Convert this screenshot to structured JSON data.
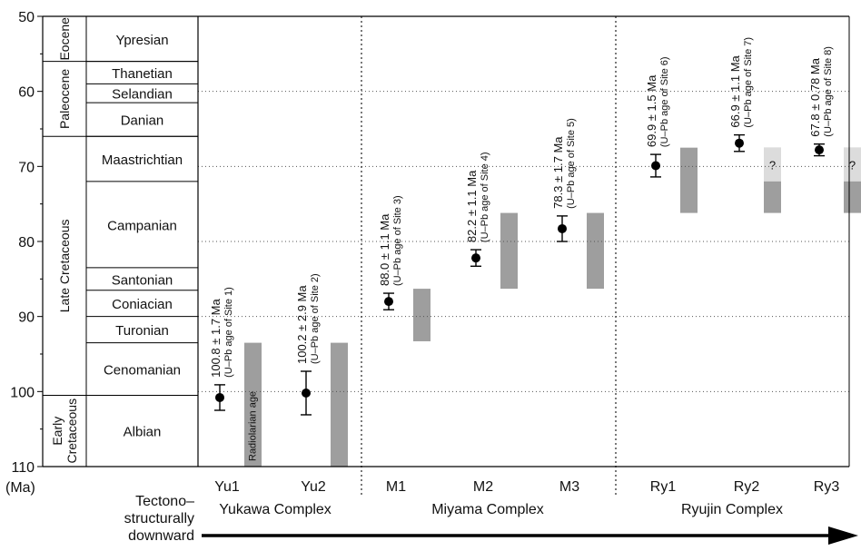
{
  "chart_data": {
    "type": "scatter",
    "ylabel": "(Ma)",
    "ylim": [
      50,
      110
    ],
    "yticks": [
      50,
      60,
      70,
      80,
      90,
      100,
      110
    ],
    "grid": "dotted horizontal lines at each 10 Ma and dotted vertical complex separators",
    "periods": [
      {
        "name": "Eocene",
        "from": 50,
        "to": 56
      },
      {
        "name": "Paleocene",
        "from": 56,
        "to": 66
      },
      {
        "name": "Late Cretaceous",
        "from": 66,
        "to": 100.5
      },
      {
        "name": "Early Cretaceous",
        "from": 100.5,
        "to": 110
      }
    ],
    "stages": [
      {
        "name": "Ypresian",
        "from": 50,
        "to": 56
      },
      {
        "name": "Thanetian",
        "from": 56,
        "to": 59
      },
      {
        "name": "Selandian",
        "from": 59,
        "to": 61.5
      },
      {
        "name": "Danian",
        "from": 61.5,
        "to": 66
      },
      {
        "name": "Maastrichtian",
        "from": 66,
        "to": 72
      },
      {
        "name": "Campanian",
        "from": 72,
        "to": 83.5
      },
      {
        "name": "Santonian",
        "from": 83.5,
        "to": 86.5
      },
      {
        "name": "Coniacian",
        "from": 86.5,
        "to": 90
      },
      {
        "name": "Turonian",
        "from": 90,
        "to": 93.5
      },
      {
        "name": "Cenomanian",
        "from": 93.5,
        "to": 100.5
      },
      {
        "name": "Albian",
        "from": 100.5,
        "to": 110
      }
    ],
    "columns": [
      "Yu1",
      "Yu2",
      "M1",
      "M2",
      "M3",
      "Ry1",
      "Ry2",
      "Ry3"
    ],
    "complexes": [
      {
        "name": "Yukawa Complex",
        "columns": [
          "Yu1",
          "Yu2"
        ]
      },
      {
        "name": "Miyama Complex",
        "columns": [
          "M1",
          "M2",
          "M3"
        ]
      },
      {
        "name": "Ryujin Complex",
        "columns": [
          "Ry1",
          "Ry2",
          "Ry3"
        ]
      }
    ],
    "u_pb_ages": [
      {
        "column": "Yu1",
        "age": 100.8,
        "err": 1.7,
        "label": "100.8 ± 1.7 Ma",
        "sublabel": "(U–Pb age of Site 1)"
      },
      {
        "column": "Yu2",
        "age": 100.2,
        "err": 2.9,
        "label": "100.2 ± 2.9 Ma",
        "sublabel": "(U–Pb age of Site 2)"
      },
      {
        "column": "M1",
        "age": 88.0,
        "err": 1.1,
        "label": "88.0 ± 1.1 Ma",
        "sublabel": "(U–Pb age of Site 3)"
      },
      {
        "column": "M2",
        "age": 82.2,
        "err": 1.1,
        "label": "82.2 ± 1.1 Ma",
        "sublabel": "(U–Pb age of Site 4)"
      },
      {
        "column": "M3",
        "age": 78.3,
        "err": 1.7,
        "label": "78.3 ± 1.7 Ma",
        "sublabel": "(U–Pb age of Site 5)"
      },
      {
        "column": "Ry1",
        "age": 69.9,
        "err": 1.5,
        "label": "69.9 ± 1.5 Ma",
        "sublabel": "(U–Pb age of Site 6)"
      },
      {
        "column": "Ry2",
        "age": 66.9,
        "err": 1.1,
        "label": "66.9 ± 1.1 Ma",
        "sublabel": "(U–Pb age of Site 7)"
      },
      {
        "column": "Ry3",
        "age": 67.8,
        "err": 0.78,
        "label": "67.8 ± 0.78 Ma",
        "sublabel": "(U–Pb age of Site 8)"
      }
    ],
    "radiolarian_ages": [
      {
        "column": "Yu1",
        "from": 93.5,
        "to": 110
      },
      {
        "column": "Yu2",
        "from": 93.5,
        "to": 110
      },
      {
        "column": "M1",
        "from": 86.3,
        "to": 93.3
      },
      {
        "column": "M2",
        "from": 76.2,
        "to": 86.3
      },
      {
        "column": "M3",
        "from": 76.2,
        "to": 86.3
      },
      {
        "column": "Ry1",
        "from": 67.5,
        "to": 76.2
      },
      {
        "column": "Ry2",
        "from": 67.5,
        "to": 76.2,
        "uncertain_top": 72,
        "uncertain_label": "?"
      },
      {
        "column": "Ry3",
        "from": 67.5,
        "to": 76.2,
        "uncertain_top": 72,
        "uncertain_label": "?"
      }
    ],
    "bar_label": "Radiolarian age",
    "arrow_label_lines": [
      "Tectono–",
      "structurally",
      "downward"
    ],
    "colors": {
      "bar": "#9e9e9e",
      "bar_uncertain": "#dcdcdc",
      "point": "#000000",
      "grid": "#555555"
    }
  }
}
